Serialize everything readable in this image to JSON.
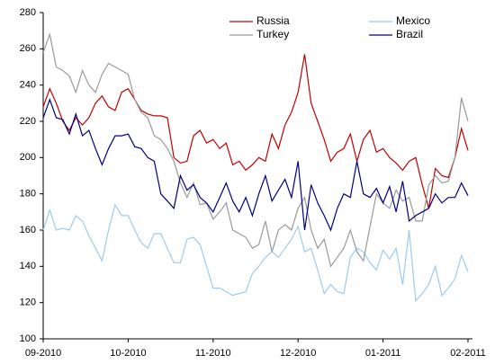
{
  "chart_data": {
    "type": "line",
    "categories": [
      "09-2010",
      null,
      null,
      null,
      null,
      null,
      null,
      null,
      null,
      null,
      null,
      null,
      null,
      "10-2010",
      null,
      null,
      null,
      null,
      null,
      null,
      null,
      null,
      null,
      null,
      null,
      null,
      "11-2010",
      null,
      null,
      null,
      null,
      null,
      null,
      null,
      null,
      null,
      null,
      null,
      null,
      "12-2010",
      null,
      null,
      null,
      null,
      null,
      null,
      null,
      null,
      null,
      null,
      null,
      null,
      "01-2011",
      null,
      null,
      null,
      null,
      null,
      null,
      null,
      null,
      null,
      null,
      null,
      null,
      "02-2011"
    ],
    "series": [
      {
        "name": "Russia",
        "color": "#c00000",
        "values": [
          228,
          238,
          230,
          220,
          215,
          222,
          218,
          222,
          230,
          234,
          228,
          226,
          236,
          238,
          232,
          226,
          224,
          223,
          223,
          222,
          200,
          197,
          198,
          212,
          215,
          208,
          210,
          205,
          208,
          196,
          198,
          193,
          196,
          200,
          198,
          213,
          205,
          218,
          225,
          236,
          257,
          230,
          220,
          210,
          198,
          203,
          205,
          213,
          198,
          210,
          215,
          203,
          205,
          200,
          197,
          193,
          198,
          200,
          185,
          172,
          194,
          190,
          189,
          200,
          216,
          204
        ]
      },
      {
        "name": "Mexico",
        "color": "#99ccee",
        "values": [
          160,
          171,
          160,
          161,
          160,
          168,
          165,
          157,
          150,
          143,
          160,
          174,
          168,
          168,
          160,
          153,
          150,
          158,
          158,
          150,
          142,
          142,
          155,
          156,
          152,
          140,
          128,
          128,
          126,
          124,
          125,
          126,
          136,
          140,
          145,
          148,
          145,
          150,
          155,
          162,
          148,
          150,
          138,
          125,
          130,
          126,
          125,
          145,
          150,
          148,
          142,
          138,
          149,
          144,
          150,
          130,
          160,
          121,
          125,
          130,
          140,
          124,
          128,
          133,
          146,
          137
        ]
      },
      {
        "name": "Turkey",
        "color": "#999999",
        "values": [
          258,
          268,
          250,
          248,
          245,
          236,
          248,
          240,
          236,
          246,
          252,
          250,
          248,
          246,
          232,
          225,
          222,
          212,
          210,
          205,
          198,
          186,
          178,
          186,
          174,
          175,
          166,
          170,
          175,
          160,
          158,
          156,
          150,
          152,
          165,
          148,
          160,
          163,
          160,
          172,
          178,
          160,
          150,
          155,
          140,
          145,
          150,
          160,
          148,
          143,
          162,
          180,
          175,
          172,
          182,
          176,
          178,
          165,
          165,
          185,
          190,
          186,
          187,
          200,
          233,
          220
        ]
      },
      {
        "name": "Brazil",
        "color": "#000080",
        "values": [
          222,
          232,
          222,
          221,
          213,
          224,
          212,
          215,
          205,
          196,
          205,
          212,
          212,
          213,
          206,
          205,
          200,
          198,
          180,
          176,
          172,
          190,
          182,
          185,
          178,
          175,
          170,
          178,
          186,
          176,
          170,
          178,
          168,
          180,
          190,
          176,
          182,
          188,
          178,
          198,
          160,
          185,
          175,
          168,
          160,
          172,
          180,
          178,
          198,
          180,
          178,
          183,
          175,
          184,
          170,
          187,
          165,
          168,
          170,
          172,
          180,
          175,
          178,
          178,
          186,
          179
        ]
      }
    ],
    "ylim": [
      100,
      280
    ],
    "yticks": [
      100,
      120,
      140,
      160,
      180,
      200,
      220,
      240,
      260,
      280
    ],
    "grid": false,
    "legend": "upper right"
  }
}
